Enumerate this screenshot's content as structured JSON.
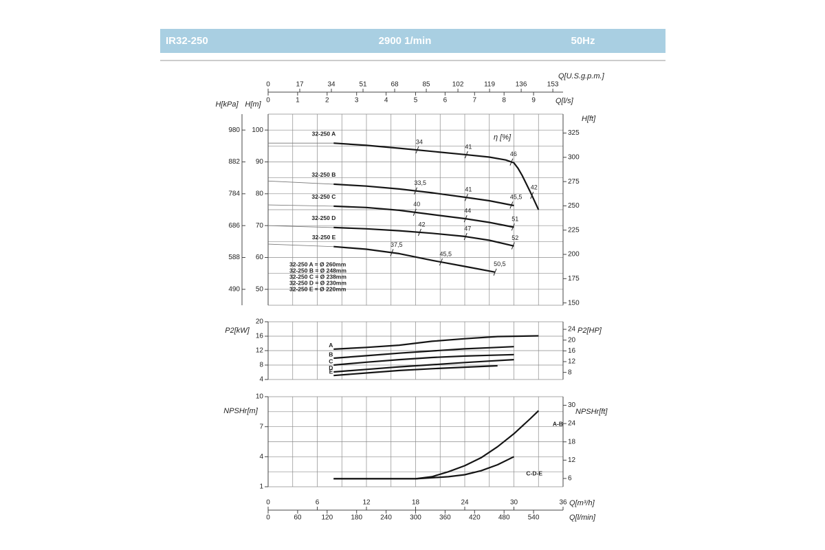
{
  "header": {
    "model": "IR32-250",
    "speed": "2900 1/min",
    "frequency": "50Hz"
  },
  "chart_data": [
    {
      "type": "line",
      "ylabel": "H[m]",
      "y2label": "H[ft]",
      "y3label": "H[kPa]",
      "xlim": [
        0,
        36
      ],
      "xgrid": [
        0,
        3,
        6,
        9,
        12,
        15,
        18,
        21,
        24,
        27,
        30,
        33,
        36
      ],
      "x2label": "Q[l/s]",
      "x2lim": [
        0,
        10
      ],
      "x2ticks": [
        0,
        1,
        2,
        3,
        4,
        5,
        6,
        7,
        8,
        9
      ],
      "x3label": "Q[U.S.g.p.m.]",
      "x3lim": [
        0,
        158.5
      ],
      "x3ticks": [
        0,
        17,
        34,
        51,
        68,
        85,
        102,
        119,
        136,
        153
      ],
      "ylim": [
        45,
        105
      ],
      "yticks": [
        50,
        60,
        70,
        80,
        90,
        100
      ],
      "ygrid": [
        45,
        50,
        55,
        60,
        65,
        70,
        75,
        80,
        85,
        90,
        95,
        100,
        105
      ],
      "y2lim": [
        147.6,
        344.5
      ],
      "y2ticks": [
        150,
        175,
        200,
        225,
        250,
        275,
        300,
        325
      ],
      "y3lim": [
        441,
        1029
      ],
      "y3ticks": [
        490,
        588,
        686,
        784,
        882,
        980
      ],
      "efficiency_label": "η [%]",
      "annotations": [
        "32-250 A = Ø 260mm",
        "32-250 B = Ø 248mm",
        "32-250 C = Ø 238mm",
        "32-250 D = Ø 230mm",
        "32-250 E = Ø 220mm"
      ],
      "series": [
        {
          "name": "32-250 A",
          "color": "#151515",
          "shutoff": 95.9,
          "x": [
            8,
            12,
            16,
            20,
            24,
            27,
            29,
            30,
            30.5,
            31,
            32,
            33
          ],
          "values": [
            95.9,
            95.2,
            94.3,
            93.3,
            92.3,
            91.5,
            90.6,
            89.7,
            88.0,
            85.8,
            80.6,
            75.0
          ],
          "efficiency": {
            "x": [
              18.2,
              24.2,
              29.7,
              32.2
            ],
            "values": [
              34,
              41,
              46,
              42
            ],
            "value_labels": [
              "34",
              "41",
              "46",
              "42"
            ]
          }
        },
        {
          "name": "32-250 B",
          "color": "#151515",
          "shutoff": 84.0,
          "x": [
            8,
            12,
            16,
            20,
            24,
            27,
            30
          ],
          "values": [
            83.0,
            82.4,
            81.5,
            80.3,
            78.9,
            77.8,
            76.3
          ],
          "efficiency": {
            "x": [
              18.0,
              24.2,
              29.7
            ],
            "values": [
              33.5,
              41,
              45.5
            ],
            "value_labels": [
              "33,5",
              "41",
              "45,5"
            ]
          }
        },
        {
          "name": "32-250 C",
          "color": "#151515",
          "shutoff": 76.5,
          "x": [
            8,
            12,
            16,
            20,
            24,
            27,
            30
          ],
          "values": [
            76.1,
            75.7,
            74.8,
            73.5,
            72.2,
            71.0,
            69.5
          ],
          "efficiency": {
            "x": [
              17.9,
              24.1,
              29.9
            ],
            "values": [
              40,
              44,
              51
            ],
            "value_labels": [
              "40",
              "44",
              "51"
            ]
          }
        },
        {
          "name": "32-250 D",
          "color": "#151515",
          "shutoff": 70.0,
          "x": [
            8,
            12,
            16,
            20,
            24,
            27,
            30
          ],
          "values": [
            69.4,
            69.0,
            68.4,
            67.6,
            66.6,
            65.4,
            63.6
          ],
          "efficiency": {
            "x": [
              18.5,
              24.1,
              29.9
            ],
            "values": [
              42,
              47,
              52
            ],
            "value_labels": [
              "42",
              "47",
              "52"
            ]
          }
        },
        {
          "name": "32-250 E",
          "color": "#151515",
          "shutoff": 64.2,
          "x": [
            8,
            12,
            16,
            20,
            24,
            27.7
          ],
          "values": [
            63.4,
            62.6,
            61.2,
            59.1,
            57.2,
            55.4
          ],
          "efficiency": {
            "x": [
              15.1,
              21.1,
              27.7
            ],
            "values": [
              37.5,
              45.5,
              50.5
            ],
            "value_labels": [
              "37,5",
              "45,5",
              "50,5"
            ]
          }
        }
      ]
    },
    {
      "type": "line",
      "ylabel": "P2[kW]",
      "y2label": "P2[HP]",
      "xlim": [
        0,
        36
      ],
      "xgrid": [
        0,
        3,
        6,
        9,
        12,
        15,
        18,
        21,
        24,
        27,
        30,
        33,
        36
      ],
      "ylim": [
        4,
        20
      ],
      "yticks": [
        4,
        8,
        12,
        16,
        20
      ],
      "y2lim": [
        5.36,
        26.82
      ],
      "y2ticks": [
        8,
        12,
        16,
        20,
        24
      ],
      "series": [
        {
          "name": "A",
          "color": "#151515",
          "x": [
            8,
            12,
            16,
            20,
            24,
            28,
            33
          ],
          "values": [
            12.4,
            12.9,
            13.5,
            14.6,
            15.3,
            15.9,
            16.1
          ]
        },
        {
          "name": "B",
          "color": "#151515",
          "x": [
            8,
            12,
            16,
            20,
            24,
            27,
            30
          ],
          "values": [
            9.9,
            10.6,
            11.3,
            11.9,
            12.5,
            12.8,
            13.1
          ]
        },
        {
          "name": "C",
          "color": "#151515",
          "x": [
            8,
            12,
            16,
            20,
            24,
            27,
            30
          ],
          "values": [
            8.0,
            8.8,
            9.5,
            10.1,
            10.5,
            10.7,
            10.9
          ]
        },
        {
          "name": "D",
          "color": "#151515",
          "x": [
            8,
            12,
            16,
            20,
            24,
            27,
            30
          ],
          "values": [
            6.1,
            6.8,
            7.5,
            8.1,
            8.7,
            9.1,
            9.5
          ]
        },
        {
          "name": "E",
          "color": "#151515",
          "x": [
            8,
            12,
            16,
            20,
            24,
            28
          ],
          "values": [
            5.1,
            5.8,
            6.5,
            7.0,
            7.4,
            7.8
          ]
        }
      ]
    },
    {
      "type": "line",
      "ylabel": "NPSHr[m]",
      "y2label": "NPSHr[ft]",
      "xlim": [
        0,
        36
      ],
      "xgrid": [
        0,
        3,
        6,
        9,
        12,
        15,
        18,
        21,
        24,
        27,
        30,
        33,
        36
      ],
      "xlabel": "Q[m³/h]",
      "xticks": [
        0,
        6,
        12,
        18,
        24,
        30,
        36
      ],
      "x2label": "Q[l/min]",
      "x2lim": [
        0,
        600
      ],
      "x2ticks": [
        0,
        60,
        120,
        180,
        240,
        300,
        360,
        420,
        480,
        540
      ],
      "ylim": [
        1,
        10
      ],
      "yticks": [
        1,
        4,
        7,
        10
      ],
      "ygrid": [
        1,
        2.5,
        4,
        5.5,
        7,
        8.5,
        10
      ],
      "y2lim": [
        3.28,
        32.81
      ],
      "y2ticks": [
        6,
        12,
        18,
        24,
        30
      ],
      "series": [
        {
          "name": "A-B",
          "color": "#151515",
          "x": [
            8,
            12,
            16,
            18,
            20,
            22,
            24,
            26,
            28,
            30,
            32,
            33
          ],
          "values": [
            1.8,
            1.8,
            1.8,
            1.8,
            2.0,
            2.5,
            3.1,
            3.9,
            5.0,
            6.3,
            7.8,
            8.6
          ]
        },
        {
          "name": "C-D-E",
          "color": "#151515",
          "x": [
            8,
            12,
            16,
            18,
            20,
            22,
            24,
            26,
            28,
            30
          ],
          "values": [
            1.8,
            1.8,
            1.8,
            1.8,
            1.9,
            2.0,
            2.2,
            2.6,
            3.2,
            4.0
          ]
        }
      ]
    }
  ]
}
